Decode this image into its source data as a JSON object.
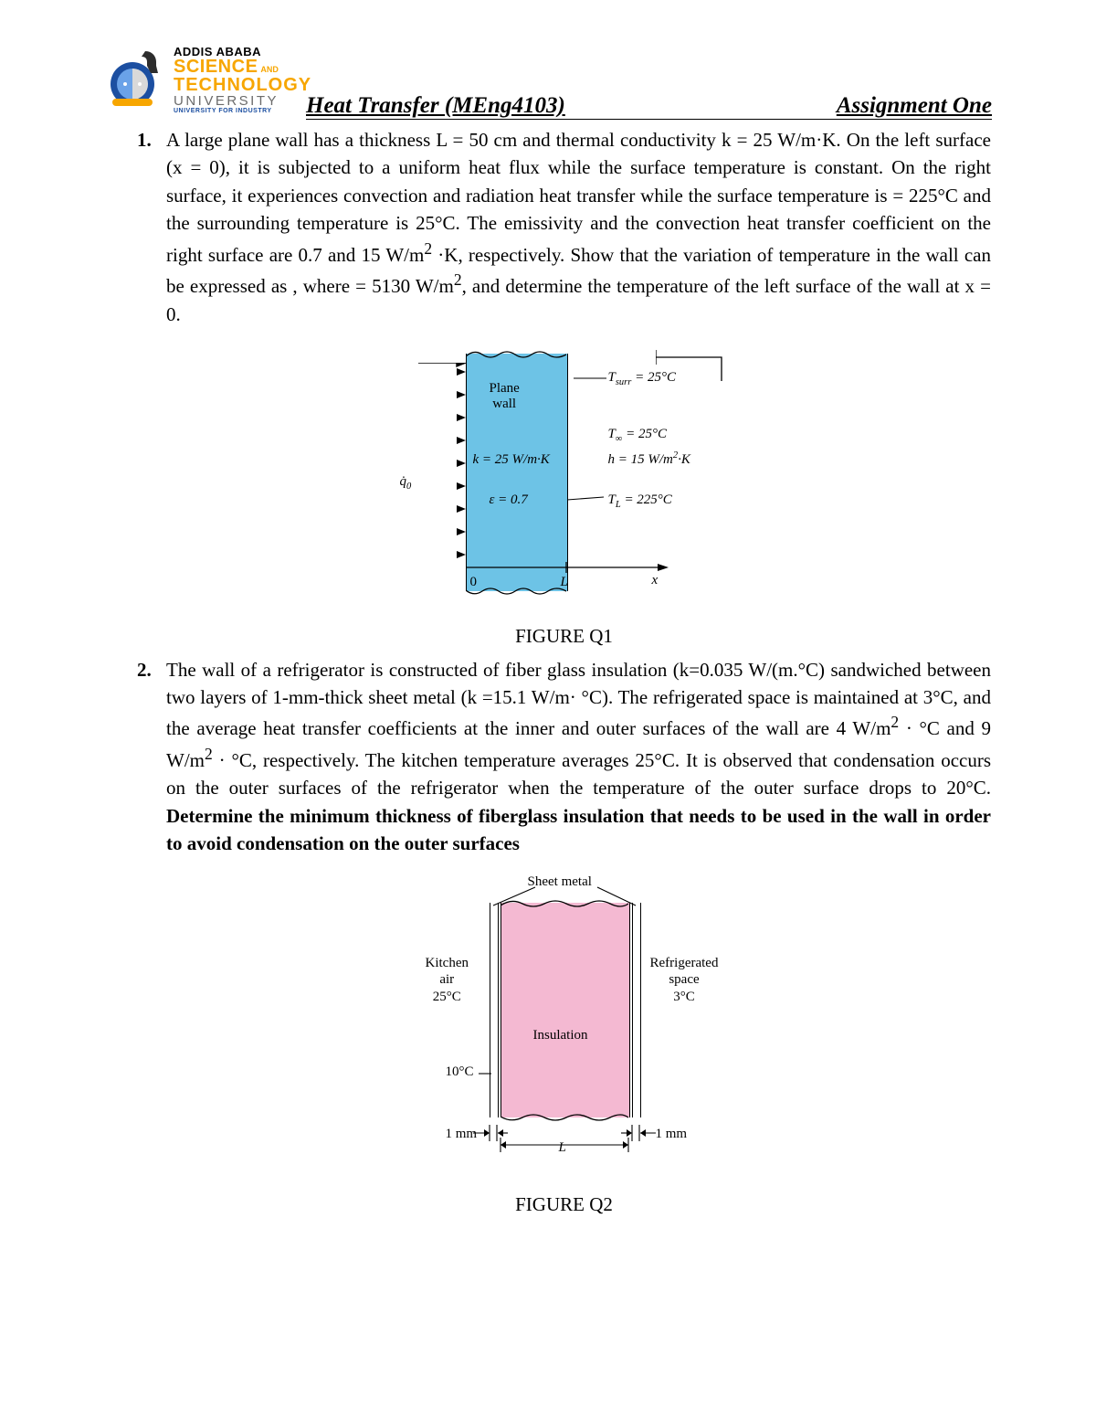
{
  "header": {
    "logo_text": {
      "line1": "ADDIS ABABA",
      "line2a": "SCIENCE",
      "line2b": "AND",
      "line3": "TECHNOLOGY",
      "line4": "UNIVERSITY",
      "line5": "UNIVERSITY FOR INDUSTRY"
    },
    "title_left": "Heat Transfer (MEng4103)",
    "title_right": "Assignment One"
  },
  "q1": {
    "num": "1.",
    "text_html": "A large plane wall has a thickness L = 50 cm and thermal conductivity k = 25 W/m·K. On the left surface (x = 0), it is subjected to a uniform heat flux  while the surface temperature  is constant. On the right surface, it experiences convection and radiation heat transfer while the surface temperature is  = 225°C and the surrounding temperature is 25°C. The emissivity and the convection heat transfer coefficient on the right surface are 0.7 and 15 W/m<sup>2</sup> ·K, respectively. Show that the variation of temperature in the wall can be expressed as , where = 5130 W/m<sup>2</sup>, and determine the temperature of the left surface of the wall at x = 0.",
    "caption": "FIGURE Q1",
    "fig": {
      "wall_color": "#6dc3e6",
      "q0": "q̇₀",
      "plane_wall": "Plane\nwall",
      "k": "k = 25 W/m·K",
      "eps": "ε = 0.7",
      "Tsurr": "T_surr = 25°C",
      "Tinf": "T_∞ = 25°C",
      "h": "h = 15 W/m²·K",
      "TL": "T_L = 225°C",
      "axis_0": "0",
      "axis_L": "L",
      "axis_x": "x"
    }
  },
  "q2": {
    "num": "2.",
    "text_html": "The wall of a refrigerator is constructed of fiber glass insulation (k=0.035 W/(m.°C) sandwiched between two layers of 1-mm-thick sheet metal (k =15.1 W/m· °C). The refrigerated space is maintained at 3°C, and the average heat transfer coefficients at the inner and outer surfaces of the wall are 4 W/m<sup>2</sup> · °C and 9 W/m<sup>2</sup> · °C, respectively. The kitchen temperature averages 25°C. It is observed that condensation occurs on the outer surfaces of the refrigerator when the temperature of the outer surface drops to 20°C. <b>Determine the minimum thickness of fiberglass insulation that needs to be used in the wall in order to avoid condensation on the outer surfaces</b>",
    "caption": "FIGURE Q2",
    "fig": {
      "ins_color": "#f4b9d2",
      "sheet_metal": "Sheet metal",
      "kitchen": "Kitchen\nair\n25°C",
      "refrig": "Refrigerated\nspace\n3°C",
      "insulation": "Insulation",
      "t10": "10°C",
      "mm": "1 mm",
      "L": "L"
    }
  }
}
